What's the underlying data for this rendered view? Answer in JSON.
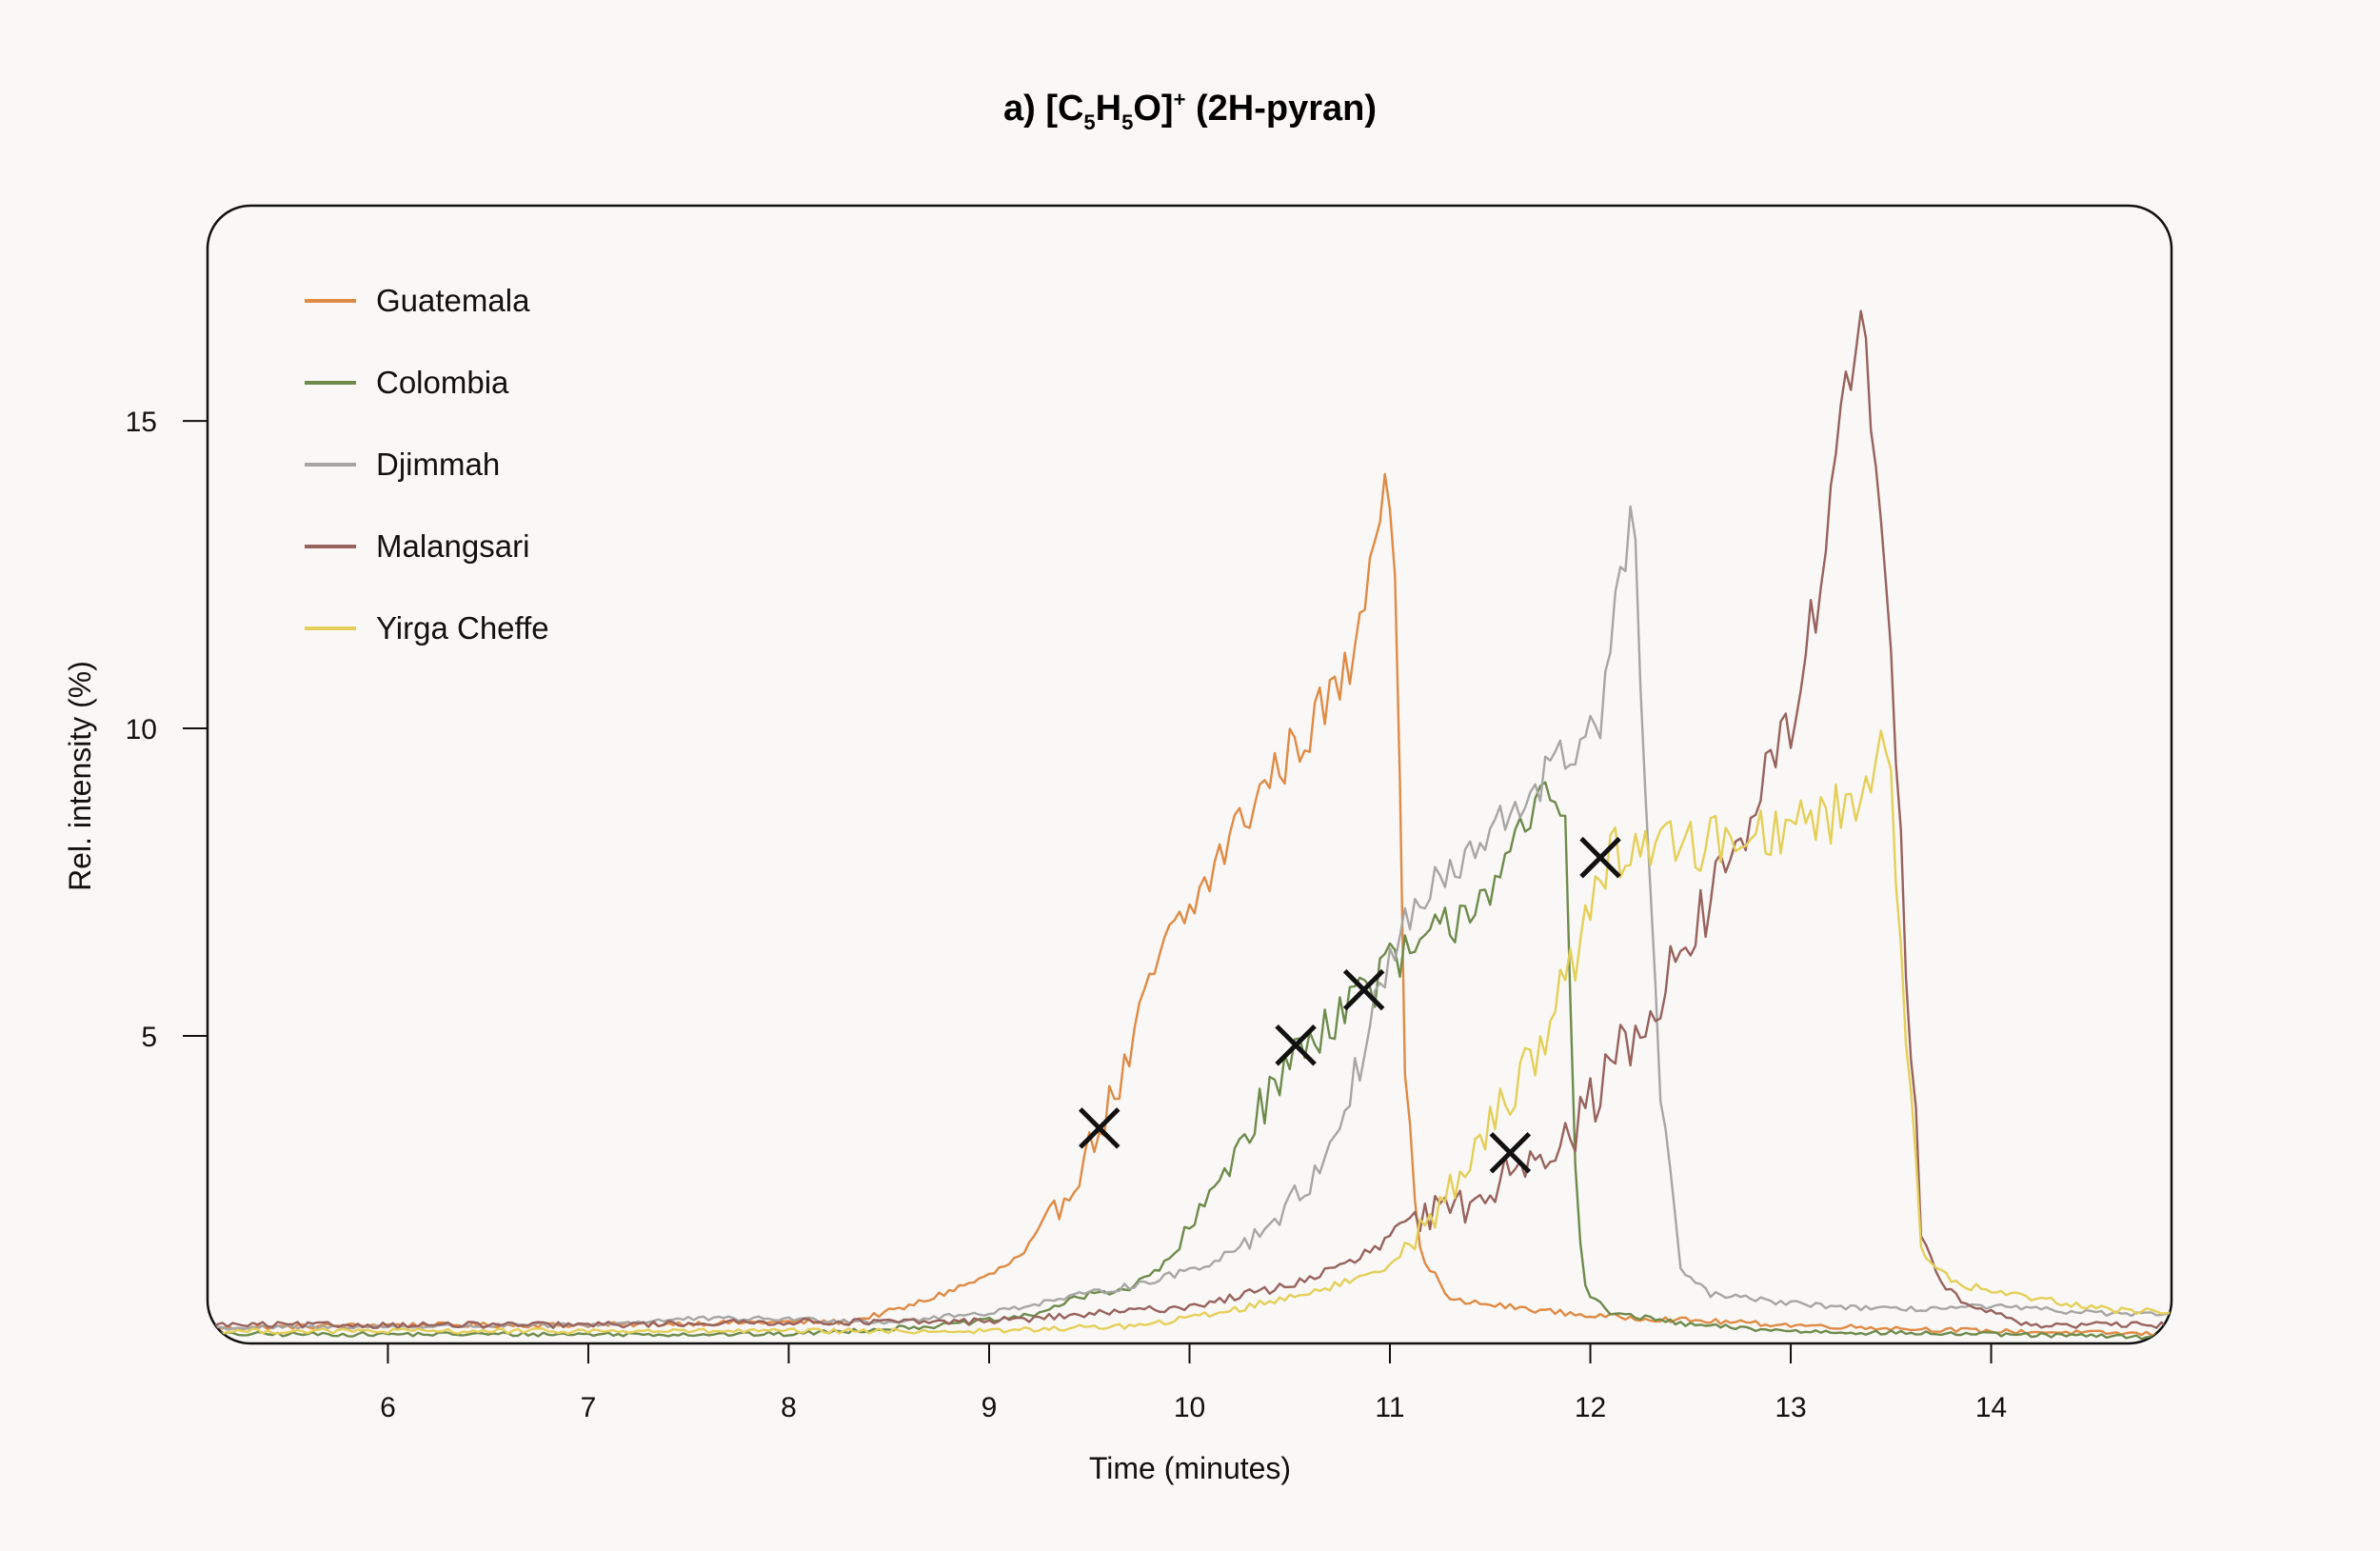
{
  "chart_data": {
    "type": "line",
    "title": {
      "prefix": "a) [C",
      "sub1": "5",
      "mid1": "H",
      "sub2": "5",
      "mid2": "O]",
      "sup": "+",
      "suffix": " (2H-pyran)"
    },
    "xlabel": "Time (minutes)",
    "ylabel": "Rel. intensity (%)",
    "xlim": [
      5.1,
      14.9
    ],
    "ylim": [
      0,
      18.5
    ],
    "x_ticks": [
      6,
      7,
      8,
      9,
      10,
      11,
      12,
      13,
      14
    ],
    "y_ticks": [
      5,
      10,
      15
    ],
    "legend_position": "top-left",
    "grid": false,
    "series": [
      {
        "name": "Guatemala",
        "color": "#e08a44",
        "anchors": [
          [
            5.1,
            0.25
          ],
          [
            6.0,
            0.3
          ],
          [
            7.0,
            0.3
          ],
          [
            8.0,
            0.35
          ],
          [
            8.3,
            0.35
          ],
          [
            8.6,
            0.6
          ],
          [
            9.0,
            1.1
          ],
          [
            9.2,
            1.5
          ],
          [
            9.4,
            2.5
          ],
          [
            9.55,
            3.5
          ],
          [
            9.7,
            4.6
          ],
          [
            9.85,
            6.3
          ],
          [
            10.0,
            7.0
          ],
          [
            10.2,
            8.2
          ],
          [
            10.4,
            9.2
          ],
          [
            10.6,
            10.0
          ],
          [
            10.8,
            11.0
          ],
          [
            10.92,
            13.2
          ],
          [
            10.98,
            14.3
          ],
          [
            11.02,
            13.5
          ],
          [
            11.08,
            4.0
          ],
          [
            11.15,
            1.5
          ],
          [
            11.3,
            0.7
          ],
          [
            12.0,
            0.45
          ],
          [
            13.0,
            0.3
          ],
          [
            14.0,
            0.2
          ],
          [
            14.9,
            0.15
          ]
        ],
        "noise": 0.45
      },
      {
        "name": "Colombia",
        "color": "#6e8b4c",
        "anchors": [
          [
            5.1,
            0.15
          ],
          [
            7.0,
            0.15
          ],
          [
            8.0,
            0.15
          ],
          [
            8.8,
            0.3
          ],
          [
            9.2,
            0.45
          ],
          [
            9.5,
            0.8
          ],
          [
            9.7,
            0.9
          ],
          [
            9.85,
            1.2
          ],
          [
            10.0,
            1.8
          ],
          [
            10.2,
            3.0
          ],
          [
            10.35,
            3.8
          ],
          [
            10.55,
            4.8
          ],
          [
            10.7,
            5.3
          ],
          [
            10.88,
            5.8
          ],
          [
            11.0,
            6.1
          ],
          [
            11.2,
            6.5
          ],
          [
            11.4,
            7.2
          ],
          [
            11.6,
            7.8
          ],
          [
            11.7,
            8.5
          ],
          [
            11.8,
            9.0
          ],
          [
            11.88,
            8.4
          ],
          [
            11.93,
            2.5
          ],
          [
            11.98,
            0.8
          ],
          [
            12.1,
            0.5
          ],
          [
            12.5,
            0.3
          ],
          [
            13.0,
            0.2
          ],
          [
            14.9,
            0.1
          ]
        ],
        "noise": 0.45
      },
      {
        "name": "Djimmah",
        "color": "#a6a6a4",
        "anchors": [
          [
            5.1,
            0.25
          ],
          [
            7.0,
            0.3
          ],
          [
            7.5,
            0.4
          ],
          [
            8.0,
            0.4
          ],
          [
            8.5,
            0.35
          ],
          [
            9.0,
            0.5
          ],
          [
            9.4,
            0.75
          ],
          [
            9.8,
            1.0
          ],
          [
            10.1,
            1.3
          ],
          [
            10.35,
            1.8
          ],
          [
            10.6,
            2.6
          ],
          [
            10.8,
            4.0
          ],
          [
            10.95,
            5.8
          ],
          [
            11.1,
            7.0
          ],
          [
            11.3,
            7.6
          ],
          [
            11.5,
            8.2
          ],
          [
            11.7,
            9.0
          ],
          [
            11.9,
            9.6
          ],
          [
            12.05,
            10.2
          ],
          [
            12.15,
            12.4
          ],
          [
            12.22,
            13.6
          ],
          [
            12.27,
            9.2
          ],
          [
            12.35,
            4.0
          ],
          [
            12.45,
            1.2
          ],
          [
            12.6,
            0.8
          ],
          [
            13.0,
            0.65
          ],
          [
            13.5,
            0.55
          ],
          [
            14.0,
            0.6
          ],
          [
            14.5,
            0.5
          ],
          [
            14.9,
            0.45
          ]
        ],
        "noise": 0.4
      },
      {
        "name": "Malangsari",
        "color": "#98625d",
        "anchors": [
          [
            5.1,
            0.3
          ],
          [
            6.0,
            0.3
          ],
          [
            7.0,
            0.3
          ],
          [
            8.0,
            0.35
          ],
          [
            8.8,
            0.35
          ],
          [
            9.2,
            0.4
          ],
          [
            10.0,
            0.6
          ],
          [
            10.5,
            0.95
          ],
          [
            10.8,
            1.3
          ],
          [
            11.0,
            1.7
          ],
          [
            11.2,
            2.1
          ],
          [
            11.45,
            2.3
          ],
          [
            11.6,
            2.9
          ],
          [
            11.75,
            3.2
          ],
          [
            11.9,
            3.3
          ],
          [
            12.05,
            4.2
          ],
          [
            12.2,
            5.0
          ],
          [
            12.4,
            6.0
          ],
          [
            12.6,
            7.2
          ],
          [
            12.8,
            8.6
          ],
          [
            13.0,
            10.0
          ],
          [
            13.15,
            12.5
          ],
          [
            13.28,
            15.5
          ],
          [
            13.36,
            16.6
          ],
          [
            13.42,
            14.5
          ],
          [
            13.5,
            11.0
          ],
          [
            13.58,
            6.0
          ],
          [
            13.65,
            2.0
          ],
          [
            13.75,
            1.0
          ],
          [
            13.9,
            0.6
          ],
          [
            14.2,
            0.3
          ],
          [
            14.9,
            0.3
          ]
        ],
        "noise": 0.55
      },
      {
        "name": "Yirga Cheffe",
        "color": "#e5cf58",
        "anchors": [
          [
            5.1,
            0.2
          ],
          [
            8.0,
            0.2
          ],
          [
            9.0,
            0.2
          ],
          [
            9.8,
            0.3
          ],
          [
            10.3,
            0.6
          ],
          [
            10.8,
            1.0
          ],
          [
            11.0,
            1.3
          ],
          [
            11.2,
            2.0
          ],
          [
            11.45,
            3.2
          ],
          [
            11.65,
            4.4
          ],
          [
            11.8,
            5.2
          ],
          [
            11.95,
            6.6
          ],
          [
            12.05,
            7.8
          ],
          [
            12.2,
            8.1
          ],
          [
            12.5,
            8.1
          ],
          [
            12.8,
            8.3
          ],
          [
            13.1,
            8.5
          ],
          [
            13.35,
            8.8
          ],
          [
            13.45,
            10.0
          ],
          [
            13.5,
            9.2
          ],
          [
            13.58,
            5.0
          ],
          [
            13.65,
            1.5
          ],
          [
            13.8,
            1.0
          ],
          [
            14.0,
            0.85
          ],
          [
            14.3,
            0.7
          ],
          [
            14.6,
            0.55
          ],
          [
            14.9,
            0.5
          ]
        ],
        "noise": 0.5
      }
    ],
    "markers": [
      {
        "series": "Guatemala",
        "x": 9.55,
        "y": 3.5
      },
      {
        "series": "Colombia",
        "x": 10.53,
        "y": 4.85
      },
      {
        "series": "Colombia",
        "x": 10.87,
        "y": 5.75
      },
      {
        "series": "Malangsari",
        "x": 11.6,
        "y": 3.1
      },
      {
        "series": "Yirga Cheffe",
        "x": 12.05,
        "y": 7.9
      }
    ]
  }
}
